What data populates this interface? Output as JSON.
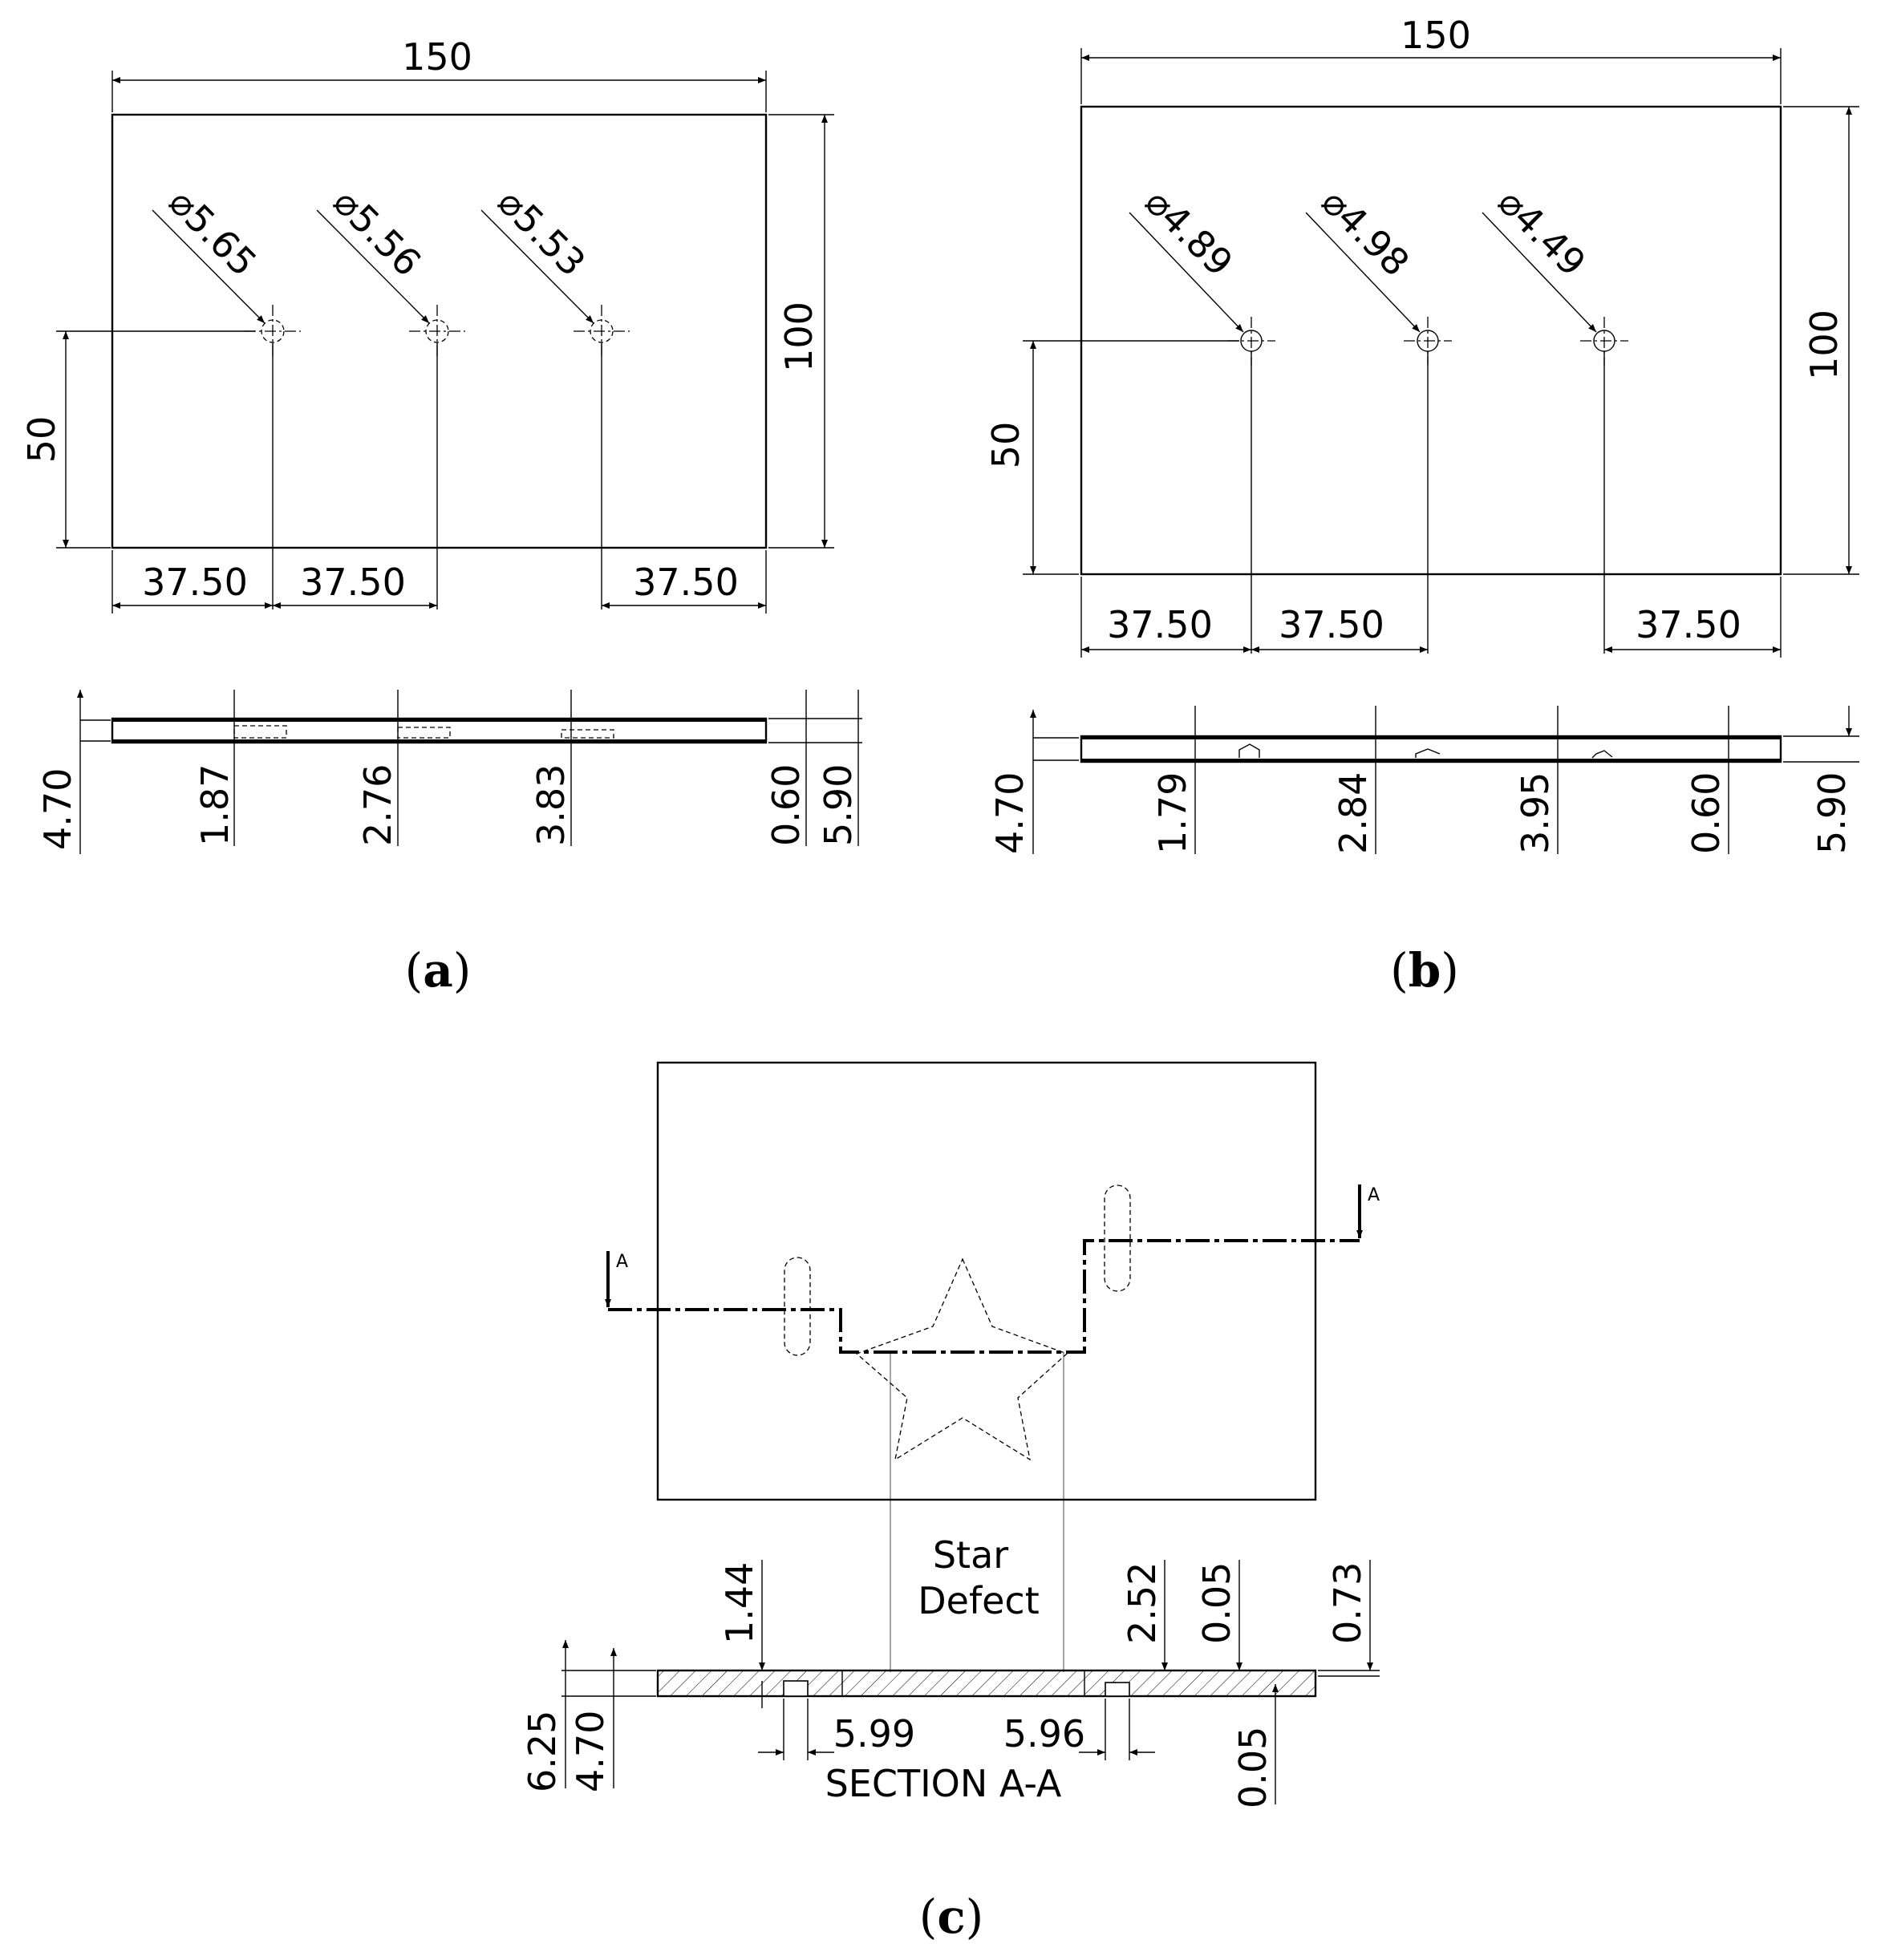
{
  "panel_a": {
    "caption_open": "(",
    "caption_letter": "a",
    "caption_close": ")",
    "width": "150",
    "height": "100",
    "hole_y": "50",
    "spacing_1": "37.50",
    "spacing_2": "37.50",
    "spacing_3": "37.50",
    "hole_diameters": [
      "5.65",
      "5.56",
      "5.53"
    ],
    "side_dims": [
      "4.70",
      "1.87",
      "2.76",
      "3.83",
      "0.60",
      "5.90"
    ]
  },
  "panel_b": {
    "caption_open": "(",
    "caption_letter": "b",
    "caption_close": ")",
    "width": "150",
    "height": "100",
    "hole_y": "50",
    "spacing_1": "37.50",
    "spacing_2": "37.50",
    "spacing_3": "37.50",
    "hole_diameters": [
      "4.89",
      "4.98",
      "4.49"
    ],
    "side_dims": [
      "4.70",
      "1.79",
      "2.84",
      "3.95",
      "0.60",
      "5.90"
    ]
  },
  "panel_c": {
    "caption_open": "(",
    "caption_letter": "c",
    "caption_close": ")",
    "section_marker": "A",
    "star_label_line1": "Star",
    "star_label_line2": "Defect",
    "section_title": "SECTION A-A",
    "dims": {
      "left_depth": "1.44",
      "right_depth": "2.52",
      "top_gap": "0.05",
      "right_offset": "0.73",
      "total": "6.25",
      "core": "4.70",
      "left_width": "5.99",
      "right_width": "5.96",
      "bottom_gap": "0.05"
    }
  },
  "diameter_symbol": "⌀"
}
